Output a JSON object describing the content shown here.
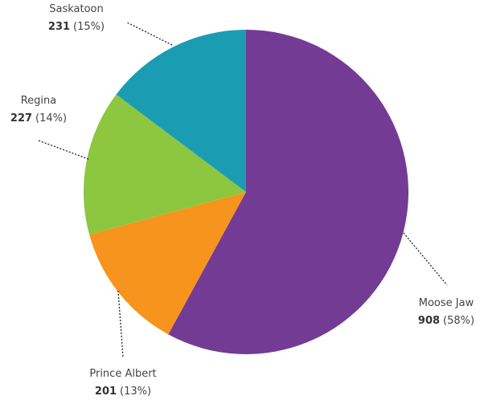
{
  "chart_data": {
    "type": "pie",
    "categories": [
      "Moose Jaw",
      "Prince Albert",
      "Regina",
      "Saskatoon"
    ],
    "values": [
      908,
      201,
      227,
      231
    ],
    "percent_labels": [
      "(58%)",
      "(13%)",
      "(14%)",
      "(15%)"
    ],
    "colors": [
      "#743b95",
      "#f7941d",
      "#8dc63f",
      "#1a9db3"
    ]
  }
}
